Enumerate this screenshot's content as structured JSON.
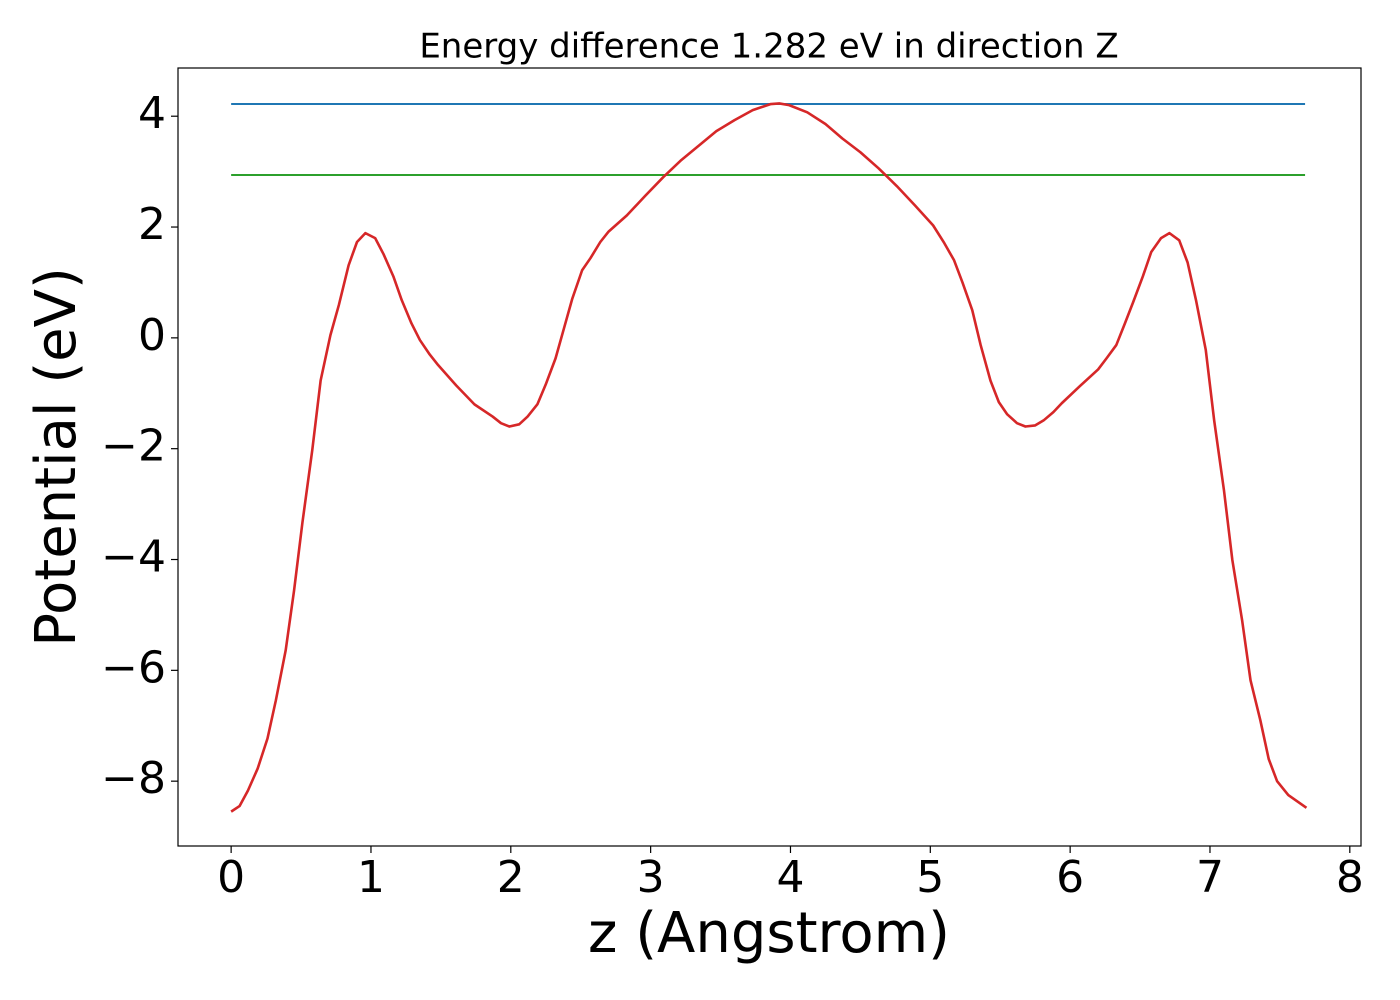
{
  "chart_data": {
    "type": "line",
    "title": "Energy difference 1.282 eV in direction Z",
    "x_label": "z (Angstrom)",
    "y_label": "Potential (eV)",
    "xlim": [
      -0.38,
      8.08
    ],
    "ylim": [
      -9.17,
      4.87
    ],
    "xticks": [
      0,
      1,
      2,
      3,
      4,
      5,
      6,
      7,
      8
    ],
    "yticks": [
      {
        "value": -8,
        "label": "−8"
      },
      {
        "value": -6,
        "label": "−6"
      },
      {
        "value": -4,
        "label": "−4"
      },
      {
        "value": -2,
        "label": "−2"
      },
      0,
      2,
      4
    ],
    "hlines": [
      {
        "value": 4.22,
        "color": "#1f77b4",
        "xmin": 0,
        "xmax": 7.68
      },
      {
        "value": 2.94,
        "color": "#2ca02c",
        "xmin": 0,
        "xmax": 7.68
      }
    ],
    "series": [
      {
        "color": "#d62728",
        "x": [
          0.0,
          0.06,
          0.12,
          0.19,
          0.26,
          0.32,
          0.39,
          0.45,
          0.51,
          0.58,
          0.64,
          0.71,
          0.77,
          0.84,
          0.9,
          0.96,
          1.03,
          1.09,
          1.16,
          1.22,
          1.29,
          1.35,
          1.42,
          1.48,
          1.61,
          1.74,
          1.87,
          1.93,
          1.99,
          2.06,
          2.12,
          2.19,
          2.25,
          2.32,
          2.38,
          2.44,
          2.51,
          2.57,
          2.64,
          2.7,
          2.83,
          2.96,
          3.09,
          3.22,
          3.35,
          3.47,
          3.6,
          3.73,
          3.86,
          3.92,
          3.99,
          4.12,
          4.25,
          4.37,
          4.5,
          4.63,
          4.76,
          4.89,
          5.02,
          5.1,
          5.17,
          5.23,
          5.3,
          5.36,
          5.43,
          5.49,
          5.55,
          5.62,
          5.68,
          5.75,
          5.81,
          5.88,
          5.94,
          6.07,
          6.2,
          6.26,
          6.33,
          6.39,
          6.45,
          6.52,
          6.58,
          6.65,
          6.71,
          6.78,
          6.84,
          6.9,
          6.97,
          7.03,
          7.1,
          7.16,
          7.23,
          7.29,
          7.36,
          7.42,
          7.48,
          7.56,
          7.69
        ],
        "values": [
          -8.55,
          -8.45,
          -8.17,
          -7.77,
          -7.23,
          -6.54,
          -5.64,
          -4.56,
          -3.33,
          -2.03,
          -0.77,
          0.05,
          0.59,
          1.31,
          1.73,
          1.89,
          1.8,
          1.51,
          1.11,
          0.68,
          0.26,
          -0.04,
          -0.3,
          -0.49,
          -0.86,
          -1.2,
          -1.42,
          -1.54,
          -1.6,
          -1.56,
          -1.42,
          -1.2,
          -0.84,
          -0.37,
          0.17,
          0.71,
          1.22,
          1.44,
          1.73,
          1.92,
          2.21,
          2.56,
          2.9,
          3.21,
          3.48,
          3.73,
          3.93,
          4.11,
          4.22,
          4.23,
          4.2,
          4.07,
          3.86,
          3.6,
          3.35,
          3.06,
          2.74,
          2.39,
          2.03,
          1.71,
          1.4,
          1.0,
          0.5,
          -0.13,
          -0.77,
          -1.16,
          -1.38,
          -1.54,
          -1.6,
          -1.58,
          -1.49,
          -1.34,
          -1.18,
          -0.87,
          -0.57,
          -0.37,
          -0.13,
          0.25,
          0.64,
          1.11,
          1.55,
          1.8,
          1.89,
          1.76,
          1.36,
          0.68,
          -0.22,
          -1.49,
          -2.75,
          -4.01,
          -5.1,
          -6.18,
          -6.9,
          -7.6,
          -8.0,
          -8.25,
          -8.48
        ]
      }
    ]
  }
}
